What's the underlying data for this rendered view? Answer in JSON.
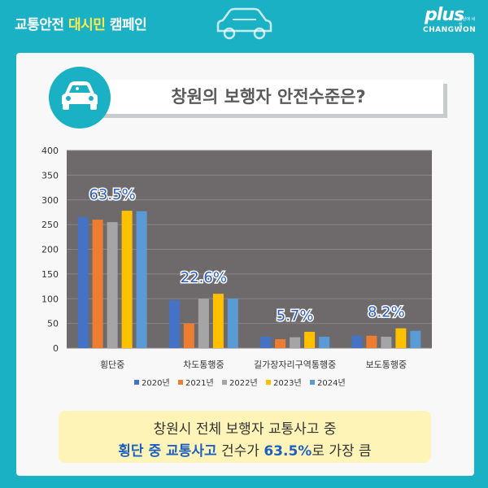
{
  "header": {
    "campaign_part1": "교통안전",
    "campaign_part2": "대시민",
    "campaign_part3": "캠페인",
    "logo_main": "plus",
    "logo_small": "창원에 새 힘",
    "logo_sub": "CHANGWON"
  },
  "colors": {
    "background": "#1ab1c4",
    "plot_bg": "#6e6a6b",
    "series": [
      "#4472c4",
      "#ed7d31",
      "#a5a5a5",
      "#ffc000",
      "#5b9bd5"
    ],
    "label_blue": "#2d5fc4"
  },
  "title": "창원의 보행자 안전수준은?",
  "chart_data": {
    "type": "bar",
    "categories": [
      "횡단중",
      "차도통행중",
      "길가장자리구역통행중",
      "보도통행중"
    ],
    "series": [
      {
        "name": "2020년",
        "values": [
          265,
          97,
          23,
          25
        ]
      },
      {
        "name": "2021년",
        "values": [
          260,
          50,
          18,
          25
        ]
      },
      {
        "name": "2022년",
        "values": [
          255,
          100,
          22,
          23
        ]
      },
      {
        "name": "2023년",
        "values": [
          278,
          110,
          33,
          40
        ]
      },
      {
        "name": "2024년",
        "values": [
          277,
          100,
          23,
          35
        ]
      }
    ],
    "annotations": [
      "63.5%",
      "22.6%",
      "5.7%",
      "8.2%"
    ],
    "ylim": [
      0,
      400
    ],
    "yticks": [
      0,
      50,
      100,
      150,
      200,
      250,
      300,
      350,
      400
    ],
    "legend_position": "bottom"
  },
  "summary": {
    "line1": "창원시 전체 보행자 교통사고 중",
    "line2_a": "횡단 중 교통사고",
    "line2_b": " 건수가 ",
    "line2_c": "63.5%",
    "line2_d": "로 가장 큼"
  }
}
